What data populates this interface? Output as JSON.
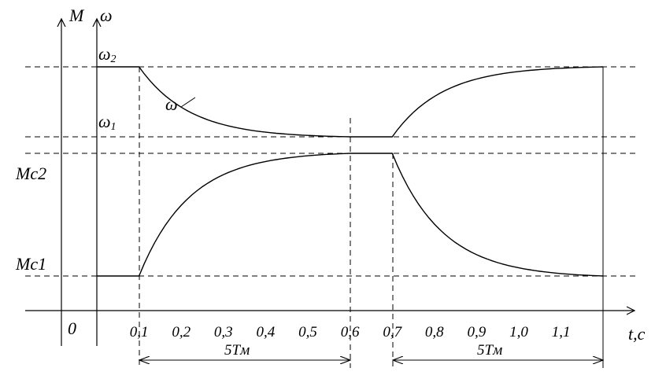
{
  "chart_data": {
    "type": "line",
    "axes": {
      "y1_label": "M",
      "y2_label": "ω",
      "x_label": "t,c",
      "origin_label": "0"
    },
    "x_ticks": [
      "0,1",
      "0,2",
      "0,3",
      "0,4",
      "0,5",
      "0,6",
      "0,7",
      "0,8",
      "0,9",
      "1,0",
      "1,1"
    ],
    "x_tick_values": [
      0.1,
      0.2,
      0.3,
      0.4,
      0.5,
      0.6,
      0.7,
      0.8,
      0.9,
      1.0,
      1.1
    ],
    "levels": {
      "omega2": {
        "base": "ω",
        "sub": "2"
      },
      "omega1": {
        "base": "ω",
        "sub": "1"
      },
      "mc2": {
        "base": "Mc",
        "sub": "2"
      },
      "mc1": {
        "base": "Mc",
        "sub": "1"
      }
    },
    "series": [
      {
        "name": "ω",
        "points": [
          [
            0.0,
            "ω2"
          ],
          [
            0.1,
            "ω2"
          ],
          [
            0.6,
            "ω1"
          ],
          [
            0.7,
            "ω1"
          ],
          [
            1.2,
            "ω2"
          ]
        ]
      },
      {
        "name": "M",
        "points": [
          [
            0.0,
            "Mc1"
          ],
          [
            0.1,
            "Mc1"
          ],
          [
            0.6,
            "Mc2"
          ],
          [
            0.7,
            "Mc2"
          ],
          [
            1.2,
            "Mc1"
          ]
        ]
      }
    ],
    "annotations": {
      "curve_label": "ω",
      "interval_1": {
        "text": "5Tм",
        "from": 0.1,
        "to": 0.6
      },
      "interval_2": {
        "text": "5Tм",
        "from": 0.7,
        "to": 1.2
      }
    }
  }
}
